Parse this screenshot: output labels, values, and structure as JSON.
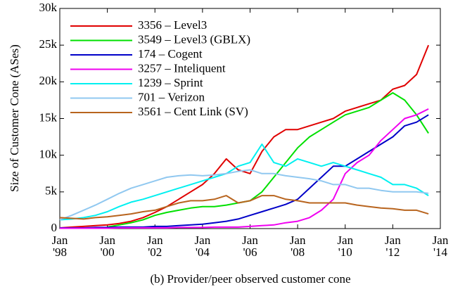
{
  "chart_data": {
    "type": "line",
    "ylabel": "Size of Customer Cone (ASes)",
    "caption": "(b) Provider/peer observed customer cone",
    "x": [
      1998,
      1998.5,
      1999,
      1999.5,
      2000,
      2000.5,
      2001,
      2001.5,
      2002,
      2002.5,
      2003,
      2003.5,
      2004,
      2004.5,
      2005,
      2005.5,
      2006,
      2006.5,
      2007,
      2007.5,
      2008,
      2008.5,
      2009,
      2009.5,
      2010,
      2010.5,
      2011,
      2011.5,
      2012,
      2012.5,
      2013,
      2013.5
    ],
    "xlim": [
      1998,
      2014
    ],
    "xticks": [
      {
        "value": 1998,
        "label": "Jan '98"
      },
      {
        "value": 2000,
        "label": "Jan '00"
      },
      {
        "value": 2002,
        "label": "Jan '02"
      },
      {
        "value": 2004,
        "label": "Jan '04"
      },
      {
        "value": 2006,
        "label": "Jan '06"
      },
      {
        "value": 2008,
        "label": "Jan '08"
      },
      {
        "value": 2010,
        "label": "Jan '10"
      },
      {
        "value": 2012,
        "label": "Jan '12"
      },
      {
        "value": 2014,
        "label": "Jan '14"
      }
    ],
    "ylim": [
      0,
      30000
    ],
    "yticks": [
      0,
      {
        "value": 5000,
        "label": "5k"
      },
      {
        "value": 10000,
        "label": "10k"
      },
      {
        "value": 15000,
        "label": "15k"
      },
      {
        "value": 20000,
        "label": "20k"
      },
      {
        "value": 25000,
        "label": "25k"
      },
      {
        "value": 30000,
        "label": "30k"
      }
    ],
    "legend": "upper left",
    "series": [
      {
        "name": "3356 – Level3",
        "color": "#e00000",
        "values": [
          100,
          200,
          300,
          400,
          500,
          700,
          1000,
          1500,
          2200,
          3000,
          4000,
          5000,
          6000,
          7500,
          9500,
          8000,
          7500,
          10500,
          12500,
          13500,
          13500,
          14000,
          14500,
          15000,
          16000,
          16500,
          17000,
          17500,
          19000,
          19500,
          21000,
          25000
        ]
      },
      {
        "name": "3549 – Level3 (GBLX)",
        "color": "#00e000",
        "values": [
          null,
          null,
          null,
          null,
          200,
          500,
          800,
          1200,
          1800,
          2200,
          2500,
          2800,
          3000,
          3000,
          3200,
          3500,
          3800,
          5000,
          7000,
          9000,
          11000,
          12500,
          13500,
          14500,
          15500,
          16000,
          16500,
          17500,
          18500,
          17500,
          15500,
          13000
        ]
      },
      {
        "name": "174 – Cogent",
        "color": "#0000c8",
        "values": [
          100,
          100,
          100,
          150,
          150,
          200,
          200,
          200,
          300,
          300,
          400,
          500,
          600,
          800,
          1000,
          1300,
          1800,
          2300,
          2800,
          3300,
          4000,
          5500,
          7000,
          8500,
          8500,
          9500,
          10500,
          11500,
          12500,
          14000,
          14500,
          15500
        ]
      },
      {
        "name": "3257 – Inteliquent",
        "color": "#f000f0",
        "values": [
          50,
          50,
          50,
          50,
          50,
          100,
          100,
          100,
          100,
          100,
          150,
          150,
          150,
          200,
          200,
          200,
          300,
          400,
          500,
          800,
          1000,
          1500,
          2500,
          4000,
          7500,
          9000,
          10000,
          12000,
          13500,
          15000,
          15500,
          16300
        ]
      },
      {
        "name": "1239 – Sprint",
        "color": "#00f0f0",
        "values": [
          1200,
          1300,
          1500,
          1800,
          2300,
          3000,
          3600,
          4000,
          4500,
          5000,
          5500,
          6000,
          6500,
          7000,
          7500,
          8500,
          9000,
          11500,
          9000,
          8500,
          9500,
          9000,
          8500,
          9000,
          8500,
          8000,
          7500,
          7000,
          6000,
          6000,
          5500,
          4500
        ]
      },
      {
        "name": "701 – Verizon",
        "color": "#90c8f0",
        "values": [
          1200,
          1800,
          2500,
          3200,
          4000,
          4800,
          5500,
          6000,
          6500,
          7000,
          7200,
          7300,
          7200,
          7300,
          7500,
          7800,
          8000,
          7500,
          7500,
          7200,
          7000,
          6800,
          6500,
          6000,
          6000,
          5500,
          5500,
          5200,
          5000,
          5000,
          5000,
          4800
        ]
      },
      {
        "name": "3561 – Cent Link (SV)",
        "color": "#b8641e",
        "values": [
          1500,
          1400,
          1300,
          1500,
          1600,
          1800,
          2000,
          2300,
          2500,
          3000,
          3500,
          3800,
          3800,
          4000,
          4500,
          3500,
          3800,
          4500,
          4500,
          4000,
          3800,
          3500,
          3500,
          3500,
          3500,
          3200,
          3000,
          2800,
          2700,
          2500,
          2500,
          2000
        ]
      }
    ]
  }
}
